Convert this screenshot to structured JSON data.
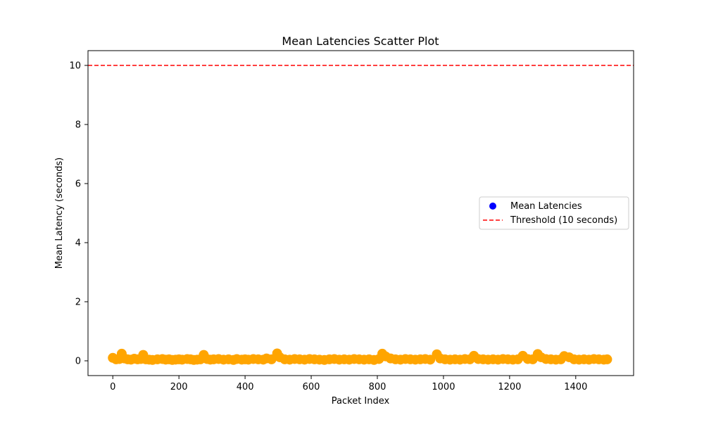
{
  "chart_data": {
    "type": "scatter",
    "title": "Mean Latencies Scatter Plot",
    "xlabel": "Packet Index",
    "ylabel": "Mean Latency (seconds)",
    "xlim": [
      -75,
      1575
    ],
    "ylim": [
      -0.5,
      10.5
    ],
    "xticks": [
      0,
      200,
      400,
      600,
      800,
      1000,
      1200,
      1400
    ],
    "yticks": [
      0,
      2,
      4,
      6,
      8,
      10
    ],
    "grid": false,
    "legend_position": "center-right",
    "colors": {
      "series_marker": "#0000ff",
      "highlight_marker": "#ffa500",
      "threshold": "#ff0000"
    },
    "threshold": {
      "name": "Threshold (10 seconds)",
      "value": 10
    },
    "series": [
      {
        "name": "Mean Latencies",
        "x": [],
        "y": []
      }
    ],
    "highlight_points": {
      "x": [
        0,
        10,
        20,
        27,
        35,
        45,
        55,
        65,
        75,
        85,
        92,
        100,
        110,
        120,
        135,
        150,
        160,
        170,
        180,
        190,
        200,
        210,
        225,
        235,
        245,
        255,
        265,
        275,
        285,
        295,
        305,
        320,
        335,
        350,
        365,
        375,
        390,
        400,
        410,
        425,
        440,
        455,
        465,
        480,
        497,
        505,
        520,
        535,
        550,
        565,
        580,
        595,
        610,
        625,
        640,
        655,
        670,
        685,
        700,
        715,
        730,
        745,
        760,
        775,
        790,
        805,
        815,
        825,
        840,
        855,
        870,
        885,
        900,
        915,
        930,
        945,
        960,
        980,
        990,
        1005,
        1020,
        1035,
        1050,
        1065,
        1080,
        1092,
        1105,
        1120,
        1135,
        1150,
        1165,
        1180,
        1195,
        1210,
        1225,
        1240,
        1255,
        1270,
        1285,
        1295,
        1310,
        1325,
        1340,
        1355,
        1365,
        1380,
        1395,
        1410,
        1425,
        1440,
        1455,
        1470,
        1485,
        1495
      ],
      "y": [
        0.1,
        0.05,
        0.06,
        0.24,
        0.08,
        0.05,
        0.04,
        0.07,
        0.05,
        0.06,
        0.2,
        0.05,
        0.04,
        0.03,
        0.05,
        0.06,
        0.04,
        0.05,
        0.03,
        0.04,
        0.05,
        0.04,
        0.06,
        0.05,
        0.03,
        0.04,
        0.05,
        0.2,
        0.06,
        0.04,
        0.05,
        0.06,
        0.04,
        0.05,
        0.03,
        0.06,
        0.04,
        0.05,
        0.04,
        0.06,
        0.05,
        0.04,
        0.08,
        0.05,
        0.25,
        0.12,
        0.05,
        0.04,
        0.06,
        0.05,
        0.04,
        0.06,
        0.05,
        0.04,
        0.03,
        0.05,
        0.06,
        0.04,
        0.05,
        0.04,
        0.06,
        0.05,
        0.04,
        0.05,
        0.03,
        0.06,
        0.24,
        0.15,
        0.08,
        0.05,
        0.04,
        0.06,
        0.05,
        0.04,
        0.05,
        0.06,
        0.04,
        0.22,
        0.08,
        0.05,
        0.04,
        0.05,
        0.04,
        0.06,
        0.05,
        0.17,
        0.06,
        0.05,
        0.04,
        0.05,
        0.04,
        0.06,
        0.05,
        0.04,
        0.05,
        0.17,
        0.06,
        0.05,
        0.23,
        0.12,
        0.06,
        0.05,
        0.04,
        0.05,
        0.16,
        0.12,
        0.05,
        0.04,
        0.05,
        0.04,
        0.06,
        0.05,
        0.04,
        0.05
      ]
    }
  }
}
